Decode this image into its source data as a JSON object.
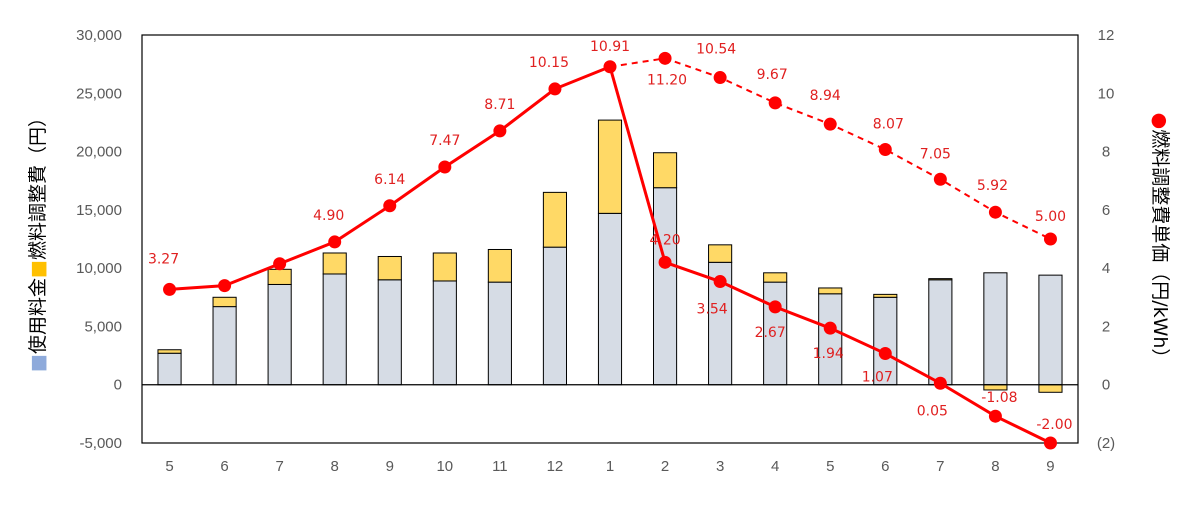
{
  "chart_data": {
    "type": "bar+line",
    "categories": [
      "5",
      "6",
      "7",
      "8",
      "9",
      "10",
      "11",
      "12",
      "1",
      "2",
      "3",
      "4",
      "5",
      "6",
      "7",
      "8",
      "9"
    ],
    "bar_series": [
      {
        "name": "使用料金",
        "color": "#d6dce5",
        "values": [
          2700,
          6700,
          8600,
          9500,
          9000,
          8900,
          8800,
          11800,
          14700,
          16900,
          10500,
          8800,
          7800,
          7500,
          9000,
          9600,
          9400
        ]
      },
      {
        "name": "燃料調整費",
        "color": "#ffd966",
        "values": [
          300,
          800,
          1300,
          1800,
          2000,
          2400,
          2800,
          4700,
          8000,
          3000,
          1500,
          800,
          500,
          250,
          100,
          -450,
          -650
        ]
      }
    ],
    "line_series": {
      "name": "燃料調整費単価",
      "color": "#ff0000",
      "values": [
        3.27,
        3.4,
        4.15,
        4.9,
        6.14,
        7.47,
        8.71,
        10.15,
        10.91,
        4.2,
        3.54,
        2.67,
        1.94,
        1.07,
        0.05,
        -1.08,
        -2.0
      ],
      "forecast_values": [
        null,
        null,
        null,
        null,
        null,
        null,
        null,
        null,
        10.91,
        11.2,
        10.54,
        9.67,
        8.94,
        8.07,
        7.05,
        5.92,
        5.0
      ],
      "data_labels": [
        {
          "index": 0,
          "text": "3.27"
        },
        {
          "index": 3,
          "text": "4.90"
        },
        {
          "index": 4,
          "text": "6.14"
        },
        {
          "index": 5,
          "text": "7.47"
        },
        {
          "index": 6,
          "text": "8.71"
        },
        {
          "index": 7,
          "text": "10.15"
        },
        {
          "index": 8,
          "text": "10.91"
        },
        {
          "index": 9,
          "text": "4.20"
        },
        {
          "index": 10,
          "text": "3.54"
        },
        {
          "index": 11,
          "text": "2.67"
        },
        {
          "index": 12,
          "text": "1.94"
        },
        {
          "index": 13,
          "text": "1.07"
        },
        {
          "index": 14,
          "text": "0.05"
        },
        {
          "index": 15,
          "text": "-1.08"
        },
        {
          "index": 16,
          "text": "-2.00"
        }
      ],
      "forecast_labels": [
        {
          "index": 9,
          "text": "11.20"
        },
        {
          "index": 10,
          "text": "10.54"
        },
        {
          "index": 11,
          "text": "9.67"
        },
        {
          "index": 12,
          "text": "8.94"
        },
        {
          "index": 13,
          "text": "8.07"
        },
        {
          "index": 14,
          "text": "7.05"
        },
        {
          "index": 15,
          "text": "5.92"
        },
        {
          "index": 16,
          "text": "5.00"
        }
      ]
    },
    "y_left": {
      "ylim": [
        -5000,
        30000
      ],
      "ticks": [
        "-5,000",
        "0",
        "5,000",
        "10,000",
        "15,000",
        "20,000",
        "25,000",
        "30,000"
      ],
      "tick_values": [
        -5000,
        0,
        5000,
        10000,
        15000,
        20000,
        25000,
        30000
      ],
      "label_parts": [
        {
          "text": "■",
          "color": "#8eaadb"
        },
        {
          "text": "使用料金",
          "color": "#000000"
        },
        {
          "text": "■",
          "color": "#ffc000"
        },
        {
          "text": "燃料調整費（円）",
          "color": "#000000"
        }
      ]
    },
    "y_right": {
      "ylim": [
        -2,
        12
      ],
      "ticks": [
        "(2)",
        "0",
        "2",
        "4",
        "6",
        "8",
        "10",
        "12"
      ],
      "tick_values": [
        -2,
        0,
        2,
        4,
        6,
        8,
        10,
        12
      ],
      "label_parts": [
        {
          "text": "●",
          "color": "#ff0000"
        },
        {
          "text": "燃料調整費単価（円/kWh）",
          "color": "#000000"
        }
      ]
    },
    "grid": false,
    "legend": "none"
  }
}
